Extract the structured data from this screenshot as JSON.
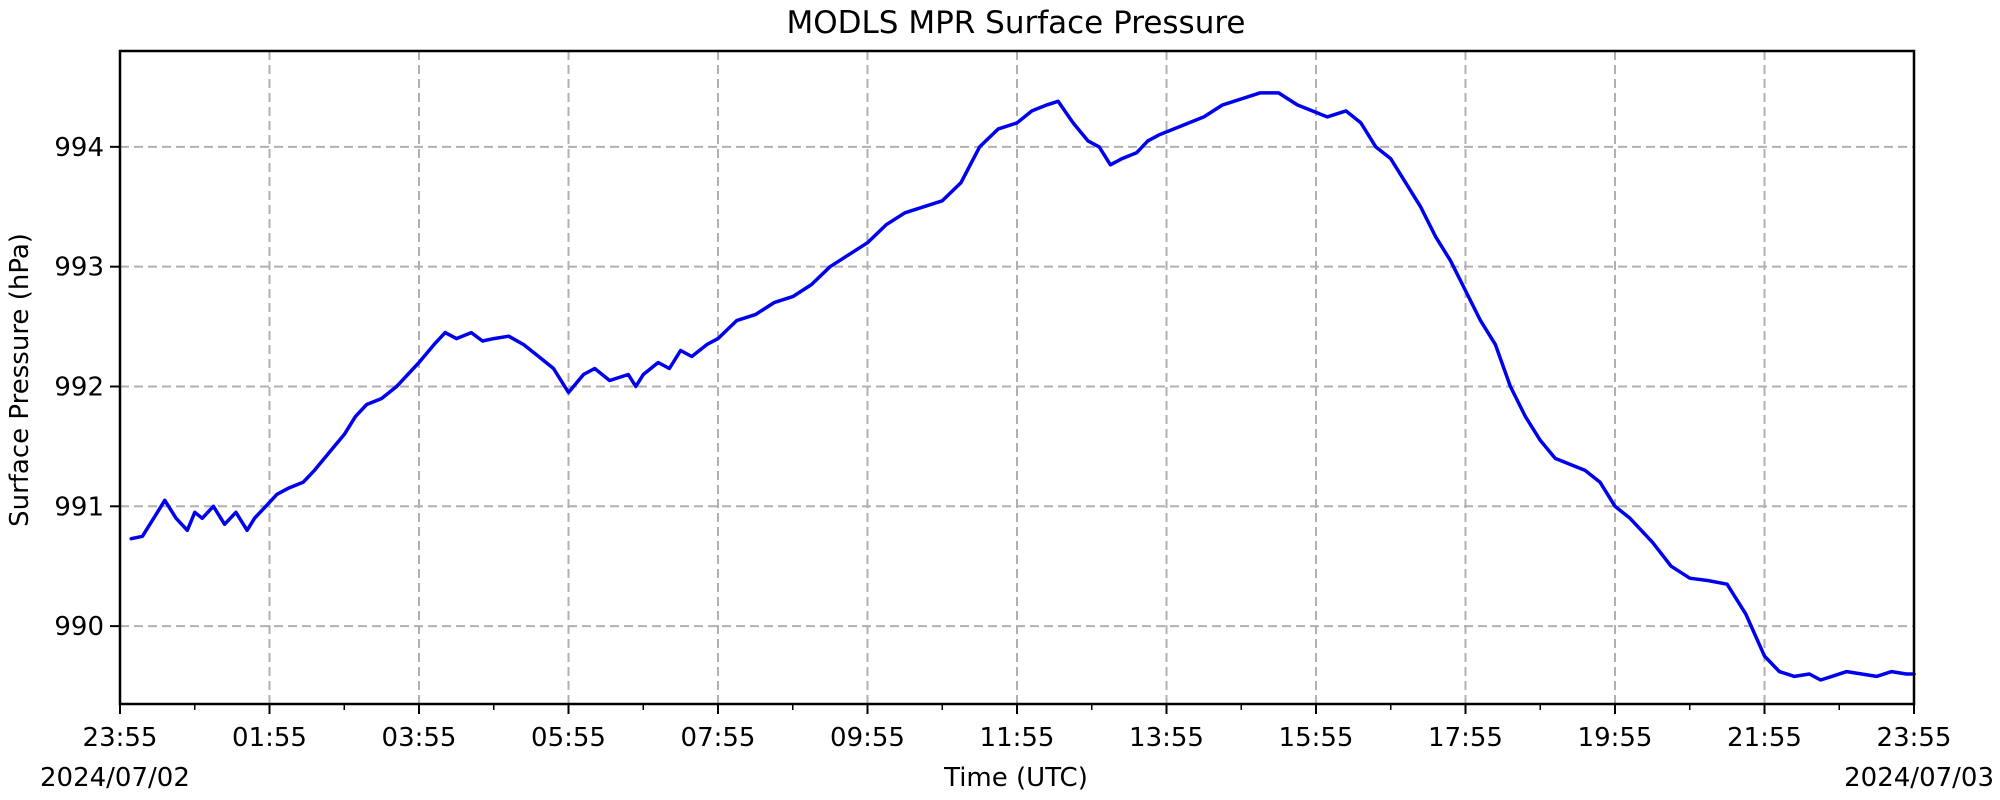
{
  "chart_data": {
    "type": "line",
    "title": "MODLS MPR Surface Pressure",
    "xlabel": "Time (UTC)",
    "ylabel": "Surface Pressure (hPa)",
    "x_start_date": "2024/07/02",
    "x_end_date": "2024/07/03",
    "x_tick_labels": [
      "23:55",
      "01:55",
      "03:55",
      "05:55",
      "07:55",
      "09:55",
      "11:55",
      "13:55",
      "15:55",
      "17:55",
      "19:55",
      "21:55",
      "23:55"
    ],
    "y_ticks": [
      990,
      991,
      992,
      993,
      994
    ],
    "ylim": [
      989.35,
      994.8
    ],
    "xlim_hours": [
      0,
      24
    ],
    "grid": true,
    "series": [
      {
        "color": "#0000ee",
        "x_hours": [
          0.15,
          0.3,
          0.5,
          0.6,
          0.75,
          0.9,
          1.0,
          1.1,
          1.25,
          1.4,
          1.55,
          1.7,
          1.8,
          1.95,
          2.1,
          2.25,
          2.45,
          2.6,
          2.8,
          3.0,
          3.15,
          3.3,
          3.5,
          3.7,
          3.85,
          4.0,
          4.2,
          4.35,
          4.5,
          4.7,
          4.85,
          5.0,
          5.2,
          5.4,
          5.6,
          5.8,
          6.0,
          6.2,
          6.35,
          6.55,
          6.8,
          6.9,
          7.0,
          7.2,
          7.35,
          7.5,
          7.65,
          7.85,
          8.0,
          8.25,
          8.5,
          8.75,
          9.0,
          9.25,
          9.5,
          9.75,
          10.0,
          10.25,
          10.5,
          10.75,
          11.0,
          11.25,
          11.5,
          11.75,
          12.0,
          12.2,
          12.4,
          12.55,
          12.75,
          12.95,
          13.1,
          13.25,
          13.4,
          13.6,
          13.75,
          13.9,
          14.1,
          14.3,
          14.5,
          14.75,
          15.0,
          15.25,
          15.5,
          15.75,
          15.95,
          16.15,
          16.4,
          16.6,
          16.8,
          17.0,
          17.2,
          17.4,
          17.6,
          17.8,
          18.0,
          18.2,
          18.4,
          18.6,
          18.8,
          19.0,
          19.2,
          19.4,
          19.6,
          19.8,
          20.0,
          20.2,
          20.5,
          20.75,
          21.0,
          21.25,
          21.5,
          21.75,
          22.0,
          22.2,
          22.4,
          22.6,
          22.75,
          22.9,
          23.1,
          23.3,
          23.5,
          23.7,
          23.9,
          24.0
        ],
        "y": [
          990.73,
          990.75,
          990.95,
          991.05,
          990.9,
          990.8,
          990.95,
          990.9,
          991.0,
          990.85,
          990.95,
          990.8,
          990.9,
          991.0,
          991.1,
          991.15,
          991.2,
          991.3,
          991.45,
          991.6,
          991.75,
          991.85,
          991.9,
          992.0,
          992.1,
          992.2,
          992.35,
          992.45,
          992.4,
          992.45,
          992.38,
          992.4,
          992.42,
          992.35,
          992.25,
          992.15,
          991.95,
          992.1,
          992.15,
          992.05,
          992.1,
          992.0,
          992.1,
          992.2,
          992.15,
          992.3,
          992.25,
          992.35,
          992.4,
          992.55,
          992.6,
          992.7,
          992.75,
          992.85,
          993.0,
          993.1,
          993.2,
          993.35,
          993.45,
          993.5,
          993.55,
          993.7,
          994.0,
          994.15,
          994.2,
          994.3,
          994.35,
          994.38,
          994.2,
          994.05,
          994.0,
          993.85,
          993.9,
          993.95,
          994.05,
          994.1,
          994.15,
          994.2,
          994.25,
          994.35,
          994.4,
          994.45,
          994.45,
          994.35,
          994.3,
          994.25,
          994.3,
          994.2,
          994.0,
          993.9,
          993.7,
          993.5,
          993.25,
          993.05,
          992.8,
          992.55,
          992.35,
          992.0,
          991.75,
          991.55,
          991.4,
          991.35,
          991.3,
          991.2,
          991.0,
          990.9,
          990.7,
          990.5,
          990.4,
          990.38,
          990.35,
          990.1,
          989.75,
          989.62,
          989.58,
          989.6,
          989.55,
          989.58,
          989.62,
          989.6,
          989.58,
          989.62,
          989.6,
          989.6
        ]
      }
    ]
  }
}
